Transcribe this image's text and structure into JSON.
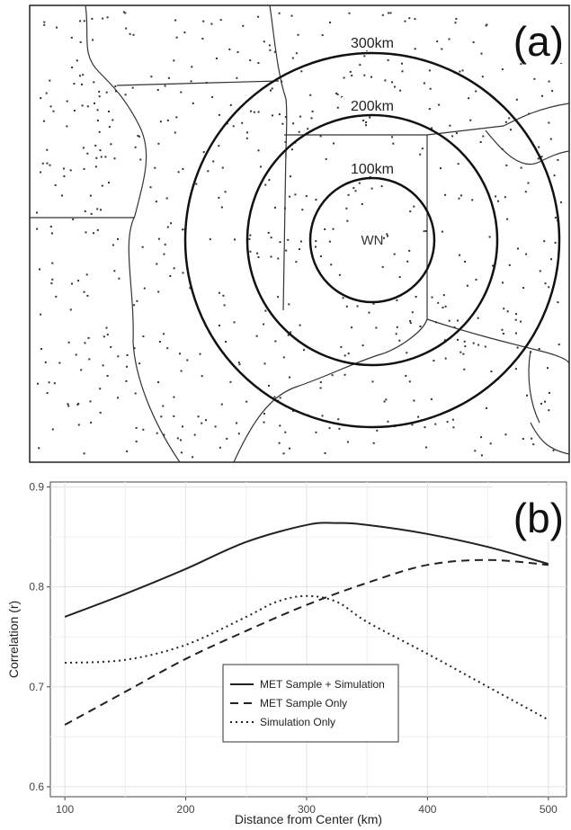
{
  "panel_a": {
    "label": "(a)",
    "center_label": "WN",
    "ring_labels": [
      "100km",
      "200km",
      "300km"
    ]
  },
  "chart_data": {
    "type": "line",
    "label": "(b)",
    "title": "",
    "xlabel": "Distance from Center (km)",
    "ylabel": "Correlation (r)",
    "xlim": [
      88,
      515
    ],
    "ylim": [
      0.59,
      0.905
    ],
    "xticks": [
      100,
      200,
      300,
      400,
      500
    ],
    "yticks": [
      0.6,
      0.7,
      0.8,
      0.9
    ],
    "xtick_labels": [
      "100",
      "200",
      "300",
      "400",
      "500"
    ],
    "ytick_labels": [
      "0.6",
      "0.7",
      "0.8",
      "0.9"
    ],
    "grid": true,
    "legend_position": "bottom-center",
    "series": [
      {
        "name": "MET Sample + Simulation",
        "style": "solid",
        "x": [
          100,
          150,
          200,
          250,
          300,
          325,
          350,
          400,
          450,
          500
        ],
        "y": [
          0.77,
          0.793,
          0.818,
          0.845,
          0.862,
          0.864,
          0.862,
          0.853,
          0.84,
          0.823
        ]
      },
      {
        "name": "MET Sample Only",
        "style": "dashed",
        "x": [
          100,
          150,
          200,
          250,
          300,
          350,
          400,
          450,
          500
        ],
        "y": [
          0.662,
          0.695,
          0.728,
          0.756,
          0.782,
          0.804,
          0.822,
          0.827,
          0.822
        ]
      },
      {
        "name": "Simulation Only",
        "style": "dotted",
        "x": [
          100,
          150,
          200,
          250,
          275,
          300,
          325,
          350,
          400,
          450,
          500
        ],
        "y": [
          0.724,
          0.727,
          0.742,
          0.77,
          0.785,
          0.791,
          0.785,
          0.765,
          0.733,
          0.7,
          0.667
        ]
      }
    ]
  }
}
